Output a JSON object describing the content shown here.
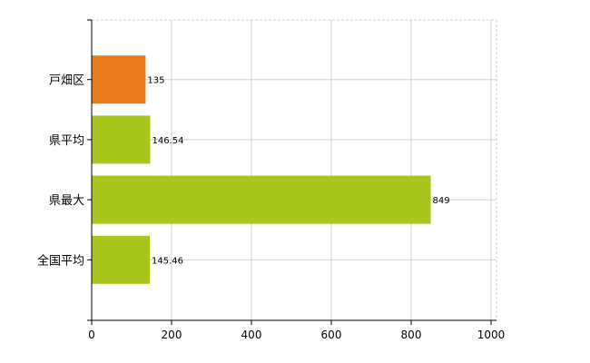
{
  "chart_data": {
    "type": "bar",
    "orientation": "horizontal",
    "categories": [
      "戸畑区",
      "県平均",
      "県最大",
      "全国平均"
    ],
    "values": [
      135,
      146.54,
      849,
      145.46
    ],
    "data_labels": [
      "135",
      "146.54",
      "849",
      "145.46"
    ],
    "colors": [
      "#e97b1c",
      "#a9c61f",
      "#a9c61f",
      "#a9c61f"
    ],
    "xlim": [
      0,
      1000
    ],
    "xticks": [
      0,
      200,
      400,
      600,
      800,
      1000
    ],
    "xtick_labels": [
      "0",
      "200",
      "400",
      "600",
      "800",
      "1000"
    ],
    "grid": true,
    "title": "",
    "xlabel": "",
    "ylabel": ""
  }
}
